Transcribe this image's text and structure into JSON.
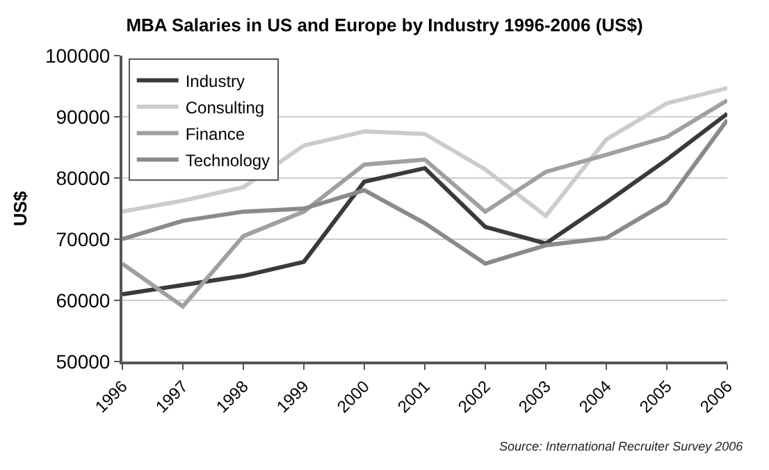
{
  "chart_data": {
    "type": "line",
    "title": "MBA Salaries in US and Europe by Industry 1996-2006 (US$)",
    "ylabel": "US$",
    "categories": [
      "1996",
      "1997",
      "1998",
      "1999",
      "2000",
      "2001",
      "2002",
      "2003",
      "2004",
      "2005",
      "2006"
    ],
    "series": [
      {
        "name": "Industry",
        "color": "#3a3a3a",
        "values": [
          61000,
          62500,
          64000,
          66300,
          79400,
          81600,
          72000,
          69300,
          76000,
          83000,
          90500
        ]
      },
      {
        "name": "Consulting",
        "color": "#cccccc",
        "values": [
          74500,
          76300,
          78500,
          85300,
          87600,
          87200,
          81400,
          73800,
          86300,
          92200,
          94700
        ]
      },
      {
        "name": "Finance",
        "color": "#a0a0a0",
        "values": [
          66000,
          59000,
          70500,
          74500,
          82200,
          83000,
          74500,
          81000,
          83800,
          86700,
          92700
        ]
      },
      {
        "name": "Technology",
        "color": "#8a8a8a",
        "values": [
          70000,
          73000,
          74500,
          75000,
          78000,
          72600,
          66000,
          69000,
          70200,
          76000,
          89500
        ]
      }
    ],
    "ylim": [
      50000,
      100000
    ],
    "yticks": [
      50000,
      60000,
      70000,
      80000,
      90000,
      100000
    ],
    "grid": "y",
    "legend": "top left",
    "marker": "none",
    "line_style": "solid",
    "annotations": [
      "Source: International Recruiter Survey 2006"
    ]
  }
}
